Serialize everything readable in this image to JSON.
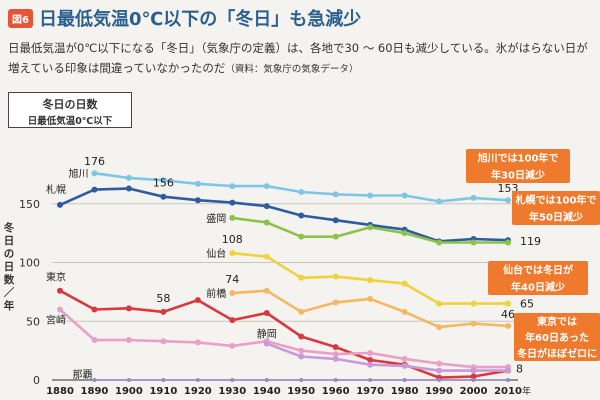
{
  "header": {
    "badge": "図6",
    "title": "日最低気温0℃以下の「冬日」も急減少"
  },
  "description": {
    "text": "日最低気温が0℃以下になる「冬日」（気象庁の定義）は、各地で30 ～ 60日も減少している。氷がはらない日が増えている印象は間違っていなかったのだ",
    "note": "（資料：気象庁の気象データ）"
  },
  "legend_box": {
    "line1": "冬日の日数",
    "line2": "日最低気温0℃以下"
  },
  "colors": {
    "asahikawa": "#7ec6e6",
    "sapporo": "#2f5c9e",
    "morioka": "#8bc34a",
    "sendai": "#f0d23c",
    "maebashi": "#f3b860",
    "tokyo": "#d9383f",
    "miyazaki": "#e8a0c8",
    "shizuoka": "#c89ad8",
    "naha": "#9b87c8",
    "callout_bg": "#ef7a2e",
    "title": "#2a5f8e"
  },
  "chart_data": {
    "type": "line",
    "title": "",
    "xlabel": "年",
    "ylabel": "冬日の日数／年",
    "xlim": [
      1880,
      2010
    ],
    "ylim": [
      0,
      200
    ],
    "yticks": [
      0,
      50,
      100,
      150
    ],
    "x_tick_labels": [
      "1880",
      "1890",
      "1900",
      "1910",
      "1920",
      "1930",
      "1940",
      "1950",
      "1960",
      "1970",
      "1980",
      "1990",
      "2000",
      "2010"
    ],
    "x_unit": "年",
    "grid": true,
    "series": [
      {
        "name": "旭川",
        "color": "#7ec6e6",
        "x": [
          1890,
          1900,
          1910,
          1920,
          1930,
          1940,
          1950,
          1960,
          1970,
          1980,
          1990,
          2000,
          2010
        ],
        "values": [
          176,
          172,
          170,
          167,
          165,
          165,
          160,
          158,
          157,
          157,
          152,
          155,
          153
        ]
      },
      {
        "name": "札幌",
        "color": "#2f5c9e",
        "x": [
          1880,
          1890,
          1900,
          1910,
          1920,
          1930,
          1940,
          1950,
          1960,
          1970,
          1980,
          1990,
          2000,
          2010
        ],
        "values": [
          149,
          162,
          163,
          156,
          153,
          151,
          148,
          140,
          136,
          132,
          128,
          118,
          120,
          119
        ]
      },
      {
        "name": "盛岡",
        "color": "#8bc34a",
        "x": [
          1930,
          1940,
          1950,
          1960,
          1970,
          1980,
          1990,
          2000,
          2010
        ],
        "values": [
          138,
          134,
          122,
          122,
          130,
          125,
          117,
          117,
          117
        ]
      },
      {
        "name": "仙台",
        "color": "#f0d23c",
        "x": [
          1930,
          1940,
          1950,
          1960,
          1970,
          1980,
          1990,
          2000,
          2010
        ],
        "values": [
          108,
          105,
          87,
          88,
          85,
          82,
          65,
          65,
          65
        ]
      },
      {
        "name": "前橋",
        "color": "#f3b860",
        "x": [
          1930,
          1940,
          1950,
          1960,
          1970,
          1980,
          1990,
          2000,
          2010
        ],
        "values": [
          74,
          76,
          58,
          66,
          69,
          58,
          45,
          48,
          46
        ]
      },
      {
        "name": "東京",
        "color": "#d9383f",
        "x": [
          1880,
          1890,
          1900,
          1910,
          1920,
          1930,
          1940,
          1950,
          1960,
          1970,
          1980,
          1990,
          2000,
          2010
        ],
        "values": [
          76,
          60,
          61,
          58,
          68,
          51,
          57,
          37,
          28,
          17,
          13,
          2,
          3,
          8
        ]
      },
      {
        "name": "宮崎",
        "color": "#e8a0c8",
        "x": [
          1880,
          1890,
          1900,
          1910,
          1920,
          1930,
          1940,
          1950,
          1960,
          1970,
          1980,
          1990,
          2000,
          2010
        ],
        "values": [
          60,
          34,
          34,
          33,
          32,
          29,
          33,
          25,
          22,
          23,
          18,
          14,
          11,
          11
        ]
      },
      {
        "name": "静岡",
        "color": "#c89ad8",
        "x": [
          1940,
          1950,
          1960,
          1970,
          1980,
          1990,
          2000,
          2010
        ],
        "values": [
          31,
          20,
          18,
          13,
          12,
          8,
          8,
          8
        ]
      },
      {
        "name": "那覇",
        "color": "#9b87c8",
        "x": [
          1890,
          1900,
          1910,
          1920,
          1930,
          1940,
          1950,
          1960,
          1970,
          1980,
          1990,
          2000,
          2010
        ],
        "values": [
          0,
          0,
          0,
          0,
          0,
          0,
          0,
          0,
          0,
          0,
          0,
          0,
          0
        ]
      }
    ],
    "data_labels": [
      {
        "series": "旭川",
        "text": "176"
      },
      {
        "series": "旭川",
        "text": "153"
      },
      {
        "series": "札幌",
        "text": "156"
      },
      {
        "series": "札幌",
        "text": "119"
      },
      {
        "series": "仙台",
        "text": "108"
      },
      {
        "series": "仙台",
        "text": "65"
      },
      {
        "series": "前橋",
        "text": "74"
      },
      {
        "series": "前橋",
        "text": "46"
      },
      {
        "series": "東京",
        "text": "58"
      },
      {
        "series": "東京",
        "text": "8"
      }
    ],
    "annotations": [
      {
        "lines": [
          "旭川では100年で",
          "年30日減少"
        ]
      },
      {
        "lines": [
          "札幌では100年で",
          "年50日減少"
        ]
      },
      {
        "lines": [
          "仙台では冬日が",
          "年40日減少"
        ]
      },
      {
        "lines": [
          "東京では",
          "年60日あった",
          "冬日がほぼゼロに"
        ]
      }
    ]
  }
}
